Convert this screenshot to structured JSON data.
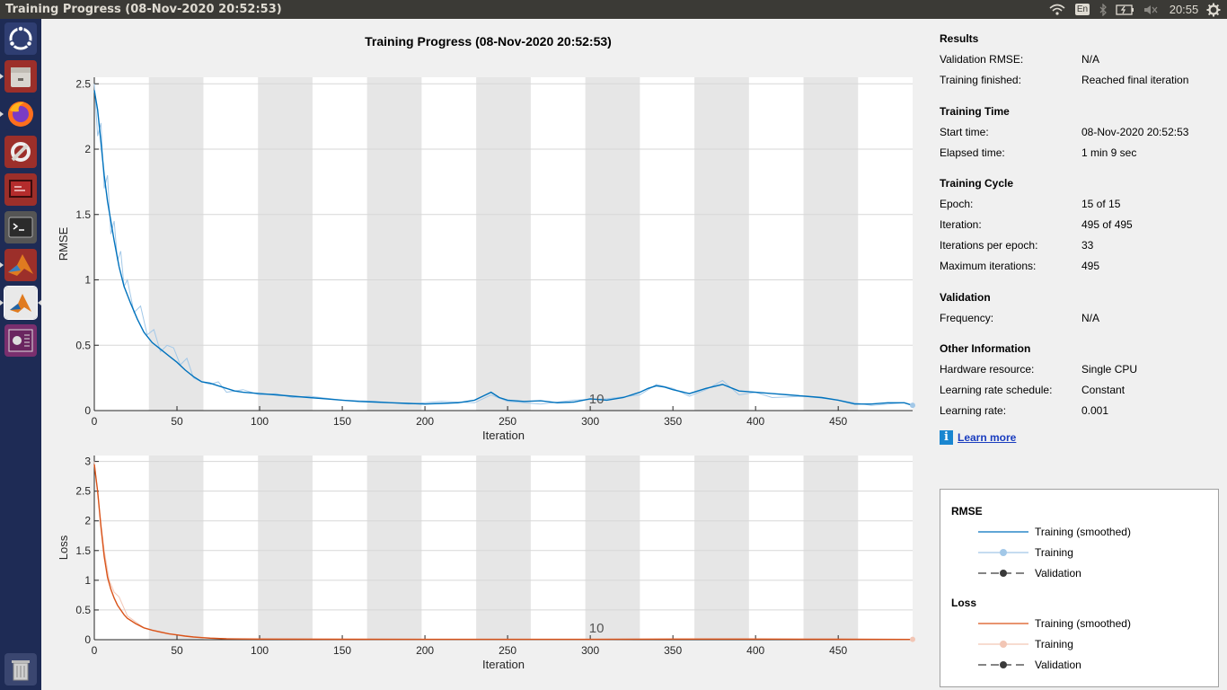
{
  "window": {
    "title": "Training Progress (08-Nov-2020 20:52:53)"
  },
  "tray": {
    "keyboard": "En",
    "time": "20:55",
    "icons": [
      "wifi-icon",
      "keyboard-icon",
      "bluetooth-icon",
      "battery-icon",
      "volume-muted-icon",
      "settings-gear-icon"
    ]
  },
  "launcher": [
    "ubuntu-dash-icon",
    "files-icon",
    "firefox-icon",
    "system-tools-icon",
    "presentation-icon",
    "terminal-icon",
    "matlab-icon",
    "matlab-active-icon",
    "video-app-icon",
    "trash-icon"
  ],
  "plot": {
    "title": "Training Progress (08-Nov-2020 20:52:53)"
  },
  "chart_data": [
    {
      "type": "line",
      "title": "",
      "xlabel": "Iteration",
      "ylabel": "RMSE",
      "xlim": [
        0,
        495
      ],
      "ylim": [
        0,
        2.55
      ],
      "xticks": [
        0,
        50,
        100,
        150,
        200,
        250,
        300,
        350,
        400,
        450
      ],
      "yticks": [
        0,
        0.5,
        1,
        1.5,
        2,
        2.5
      ],
      "ytick_labels": [
        "0",
        "0.5",
        "1",
        "1.5",
        "2",
        "2.5"
      ],
      "epoch_label": "10",
      "epoch_label_x": 300,
      "epoch_shading": [
        [
          33,
          66
        ],
        [
          99,
          132
        ],
        [
          165,
          198
        ],
        [
          231,
          264
        ],
        [
          297,
          330
        ],
        [
          363,
          396
        ],
        [
          429,
          462
        ]
      ],
      "grid": true,
      "series": [
        {
          "name": "Training (smoothed)",
          "color": "#0072bd",
          "x": [
            0,
            2,
            4,
            6,
            8,
            10,
            12,
            15,
            18,
            22,
            26,
            30,
            35,
            40,
            45,
            50,
            55,
            60,
            65,
            70,
            75,
            80,
            85,
            90,
            100,
            110,
            120,
            130,
            140,
            150,
            160,
            170,
            180,
            190,
            200,
            210,
            220,
            230,
            235,
            240,
            245,
            250,
            260,
            270,
            280,
            290,
            300,
            310,
            320,
            330,
            335,
            340,
            345,
            350,
            360,
            370,
            380,
            390,
            400,
            410,
            420,
            430,
            440,
            450,
            460,
            470,
            480,
            490,
            495
          ],
          "y": [
            2.45,
            2.3,
            2.05,
            1.8,
            1.6,
            1.45,
            1.3,
            1.1,
            0.95,
            0.82,
            0.7,
            0.6,
            0.52,
            0.47,
            0.42,
            0.37,
            0.31,
            0.26,
            0.22,
            0.21,
            0.19,
            0.17,
            0.15,
            0.14,
            0.13,
            0.12,
            0.11,
            0.1,
            0.09,
            0.08,
            0.07,
            0.065,
            0.06,
            0.055,
            0.05,
            0.055,
            0.06,
            0.08,
            0.11,
            0.14,
            0.1,
            0.08,
            0.07,
            0.075,
            0.06,
            0.065,
            0.09,
            0.08,
            0.1,
            0.14,
            0.17,
            0.19,
            0.18,
            0.16,
            0.13,
            0.17,
            0.2,
            0.15,
            0.14,
            0.13,
            0.12,
            0.11,
            0.1,
            0.08,
            0.05,
            0.05,
            0.06,
            0.06,
            0.04
          ]
        },
        {
          "name": "Training",
          "color": "#a2c8e8",
          "x": [
            0,
            2,
            4,
            6,
            8,
            10,
            12,
            14,
            16,
            18,
            20,
            24,
            28,
            32,
            36,
            40,
            44,
            48,
            52,
            56,
            60,
            65,
            70,
            75,
            80,
            90,
            100,
            110,
            120,
            130,
            150,
            170,
            190,
            210,
            230,
            240,
            250,
            270,
            290,
            310,
            330,
            340,
            350,
            360,
            370,
            380,
            390,
            400,
            410,
            430,
            450,
            470,
            490,
            495
          ],
          "y": [
            2.5,
            2.1,
            2.2,
            1.7,
            1.8,
            1.35,
            1.45,
            1.15,
            1.22,
            0.95,
            1.0,
            0.75,
            0.8,
            0.58,
            0.62,
            0.45,
            0.5,
            0.48,
            0.35,
            0.4,
            0.25,
            0.22,
            0.2,
            0.22,
            0.14,
            0.16,
            0.12,
            0.13,
            0.1,
            0.11,
            0.08,
            0.07,
            0.05,
            0.07,
            0.06,
            0.12,
            0.07,
            0.05,
            0.08,
            0.09,
            0.12,
            0.2,
            0.17,
            0.11,
            0.16,
            0.23,
            0.12,
            0.14,
            0.1,
            0.11,
            0.08,
            0.04,
            0.06,
            0.04
          ]
        }
      ]
    },
    {
      "type": "line",
      "title": "",
      "xlabel": "Iteration",
      "ylabel": "Loss",
      "xlim": [
        0,
        495
      ],
      "ylim": [
        0,
        3.1
      ],
      "xticks": [
        0,
        50,
        100,
        150,
        200,
        250,
        300,
        350,
        400,
        450
      ],
      "yticks": [
        0,
        0.5,
        1,
        1.5,
        2,
        2.5,
        3
      ],
      "ytick_labels": [
        "0",
        "0.5",
        "1",
        "1.5",
        "2",
        "2.5",
        "3"
      ],
      "epoch_label": "10",
      "epoch_label_x": 300,
      "epoch_shading": [
        [
          33,
          66
        ],
        [
          99,
          132
        ],
        [
          165,
          198
        ],
        [
          231,
          264
        ],
        [
          297,
          330
        ],
        [
          363,
          396
        ],
        [
          429,
          462
        ]
      ],
      "grid": true,
      "series": [
        {
          "name": "Training (smoothed)",
          "color": "#d95319",
          "x": [
            0,
            2,
            4,
            6,
            8,
            10,
            12,
            14,
            16,
            18,
            20,
            25,
            30,
            35,
            40,
            45,
            50,
            55,
            60,
            65,
            70,
            80,
            90,
            100,
            150,
            200,
            250,
            300,
            350,
            400,
            450,
            495
          ],
          "y": [
            2.95,
            2.5,
            1.9,
            1.4,
            1.05,
            0.85,
            0.7,
            0.58,
            0.5,
            0.42,
            0.36,
            0.27,
            0.2,
            0.16,
            0.13,
            0.1,
            0.08,
            0.06,
            0.045,
            0.035,
            0.025,
            0.015,
            0.012,
            0.01,
            0.008,
            0.006,
            0.006,
            0.006,
            0.01,
            0.01,
            0.008,
            0.005
          ]
        },
        {
          "name": "Training",
          "color": "#f2c6b5",
          "x": [
            0,
            3,
            6,
            9,
            12,
            15,
            20,
            30,
            40,
            60,
            80,
            100,
            200,
            300,
            400,
            495
          ],
          "y": [
            3.0,
            2.2,
            1.5,
            1.0,
            0.8,
            0.72,
            0.4,
            0.2,
            0.12,
            0.05,
            0.015,
            0.01,
            0.006,
            0.006,
            0.01,
            0.005
          ]
        }
      ]
    }
  ],
  "results": {
    "heading": "Results",
    "validation_rmse_label": "Validation RMSE:",
    "validation_rmse": "N/A",
    "finished_label": "Training finished:",
    "finished": "Reached final iteration"
  },
  "training_time": {
    "heading": "Training Time",
    "start_label": "Start time:",
    "start": "08-Nov-2020 20:52:53",
    "elapsed_label": "Elapsed time:",
    "elapsed": "1 min 9 sec"
  },
  "training_cycle": {
    "heading": "Training Cycle",
    "epoch_label": "Epoch:",
    "epoch": "15 of 15",
    "iteration_label": "Iteration:",
    "iteration": "495 of 495",
    "ipe_label": "Iterations per epoch:",
    "ipe": "33",
    "maxit_label": "Maximum iterations:",
    "maxit": "495"
  },
  "validation": {
    "heading": "Validation",
    "freq_label": "Frequency:",
    "freq": "N/A"
  },
  "other": {
    "heading": "Other Information",
    "hw_label": "Hardware resource:",
    "hw": "Single CPU",
    "lrs_label": "Learning rate schedule:",
    "lrs": "Constant",
    "lr_label": "Learning rate:",
    "lr": "0.001"
  },
  "learn_more": "Learn more",
  "legend": {
    "rmse_heading": "RMSE",
    "loss_heading": "Loss",
    "smoothed": "Training (smoothed)",
    "training": "Training",
    "validation": "Validation",
    "colors": {
      "rmse_smoothed": "#0072bd",
      "rmse_training": "#a2c8e8",
      "loss_smoothed": "#d95319",
      "loss_training": "#f2c6b5",
      "validation": "#3a3a3a"
    }
  }
}
